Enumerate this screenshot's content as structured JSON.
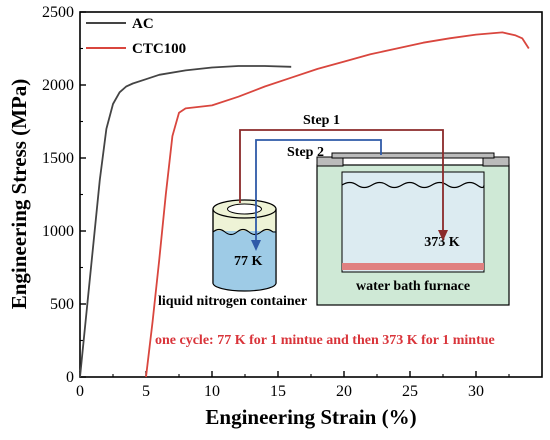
{
  "chart_data": {
    "type": "line",
    "xlabel": "Engineering Strain (%)",
    "ylabel": "Engineering Stress (MPa)",
    "xlim": [
      0,
      35
    ],
    "ylim": [
      0,
      2500
    ],
    "xticks": [
      "0",
      "5",
      "10",
      "15",
      "20",
      "25",
      "30"
    ],
    "yticks": [
      "0",
      "500",
      "1000",
      "1500",
      "2000",
      "2500"
    ],
    "grid": false,
    "legend_position": "top-left",
    "series": [
      {
        "name": "AC",
        "color": "#444444",
        "x": [
          0,
          0.5,
          1,
          1.5,
          2,
          2.5,
          3,
          3.5,
          4,
          5,
          6,
          8,
          10,
          12,
          14,
          16
        ],
        "y": [
          0,
          450,
          900,
          1350,
          1700,
          1870,
          1950,
          1990,
          2010,
          2040,
          2070,
          2100,
          2120,
          2130,
          2130,
          2125
        ]
      },
      {
        "name": "CTC100",
        "color": "#d9463e",
        "x": [
          5,
          5.5,
          6,
          6.5,
          7,
          7.5,
          8,
          9,
          10,
          12,
          14,
          16,
          18,
          20,
          22,
          24,
          26,
          28,
          30,
          32,
          33,
          33.5,
          34
        ],
        "y": [
          0,
          380,
          800,
          1250,
          1650,
          1810,
          1840,
          1850,
          1860,
          1920,
          1990,
          2050,
          2110,
          2160,
          2210,
          2250,
          2290,
          2320,
          2345,
          2360,
          2340,
          2320,
          2250
        ]
      }
    ],
    "annotations": {
      "step1": "Step 1",
      "step2": "Step 2",
      "temp_cold": "77 K",
      "temp_hot": "373 K",
      "container_label": "liquid nitrogen container",
      "furnace_label": "water bath furnace",
      "cycle_note": "one cycle: 77 K for 1 mintue and then 373 K for 1 mintue"
    },
    "colors": {
      "step1_arrow": "#8b2a2a",
      "step2_arrow": "#2f5aa8",
      "container_fill": "#eef3d6",
      "liquid_fill": "#9ecbe6",
      "furnace_fill": "#cfe9d6",
      "furnace_water": "#dcebf1",
      "heater": "#e08080",
      "note": "#d9343a"
    }
  }
}
